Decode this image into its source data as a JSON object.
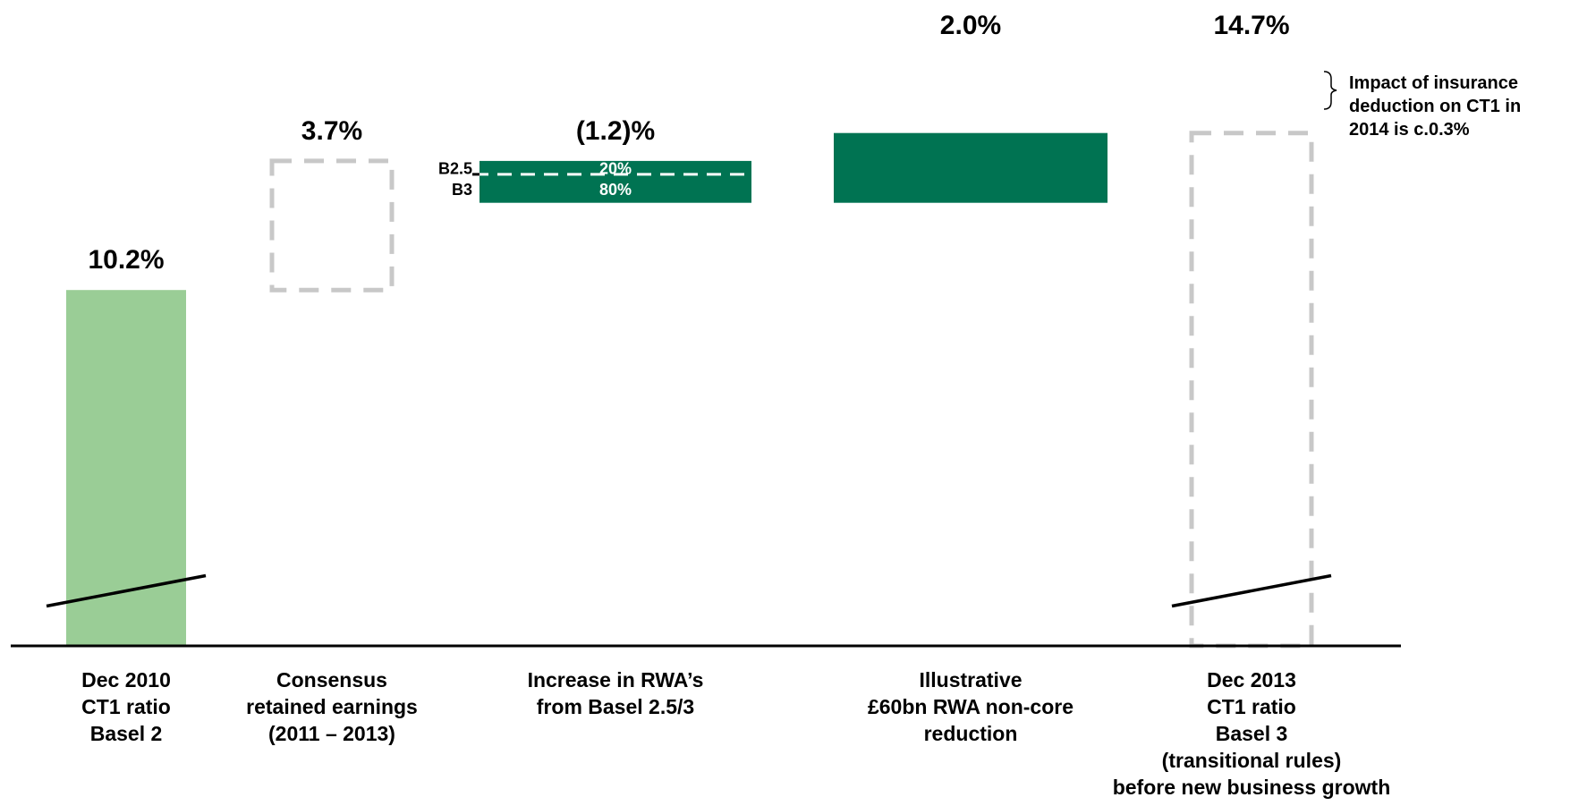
{
  "chart_data": {
    "type": "waterfall",
    "ylim": [
      0,
      16
    ],
    "colors": {
      "light_green": "#9ACD96",
      "dark_green": "#007352",
      "dashed_gray": "#C8C8C8",
      "axis": "#000000"
    },
    "bars": [
      {
        "id": "dec2010",
        "style": "solid-light",
        "value": 10.2,
        "start": 0,
        "end": 10.2,
        "value_label": "10.2%",
        "category_lines": [
          "Dec 2010",
          "CT1 ratio",
          "Basel 2"
        ],
        "axis_break": true
      },
      {
        "id": "consensus",
        "style": "dashed",
        "value": 3.7,
        "start": 10.2,
        "end": 13.9,
        "value_label": "3.7%",
        "category_lines": [
          "Consensus",
          "retained earnings",
          "(2011 – 2013)"
        ]
      },
      {
        "id": "rwa_increase",
        "style": "solid-dark",
        "value": -1.2,
        "start": 13.9,
        "end": 12.7,
        "value_label": "(1.2)%",
        "category_lines": [
          "Increase in RWA’s",
          "from Basel 2.5/3"
        ],
        "split": {
          "upper_fraction": 0.2,
          "upper_side_label": "B2.5",
          "upper_inner_label": "20%",
          "lower_side_label": "B3",
          "lower_inner_label": "80%"
        }
      },
      {
        "id": "noncore",
        "style": "solid-dark",
        "value": 2.0,
        "start": 12.7,
        "end": 14.7,
        "value_label": "2.0%",
        "category_lines": [
          "Illustrative",
          "£60bn RWA non-core",
          "reduction"
        ]
      },
      {
        "id": "dec2013",
        "style": "dashed",
        "value": 14.7,
        "start": 0,
        "end": 14.7,
        "value_label": "14.7%",
        "category_lines": [
          "Dec 2013",
          "CT1 ratio",
          "Basel 3",
          "(transitional rules)",
          "before new business growth"
        ],
        "axis_break": true
      }
    ],
    "annotation": {
      "lines": [
        "Impact of insurance",
        "deduction on CT1 in",
        "2014 is c.0.3%"
      ]
    }
  }
}
